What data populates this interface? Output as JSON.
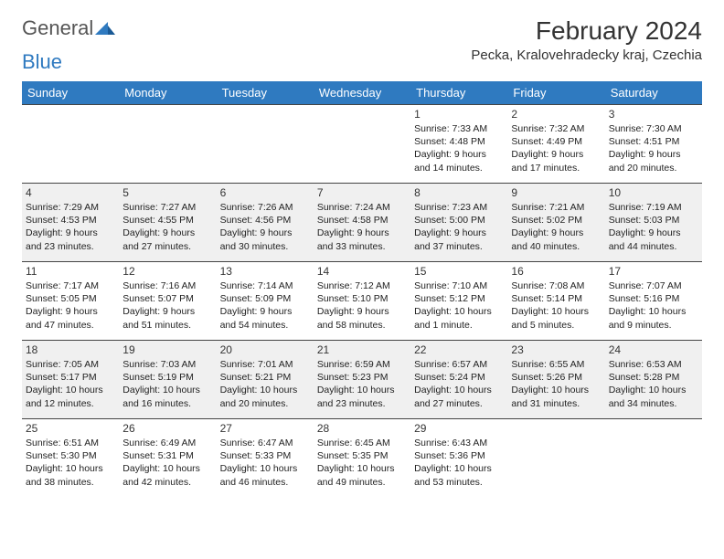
{
  "logo": {
    "text1": "General",
    "text2": "Blue"
  },
  "title": "February 2024",
  "location": "Pecka, Kralovehradecky kraj, Czechia",
  "colors": {
    "header_bg": "#2f7ac0",
    "header_fg": "#ffffff",
    "row_odd_bg": "#ffffff",
    "row_even_bg": "#f0f0f0",
    "border": "#444444"
  },
  "day_headers": [
    "Sunday",
    "Monday",
    "Tuesday",
    "Wednesday",
    "Thursday",
    "Friday",
    "Saturday"
  ],
  "weeks": [
    {
      "parity": "odd",
      "days": [
        {
          "n": "",
          "lines": []
        },
        {
          "n": "",
          "lines": []
        },
        {
          "n": "",
          "lines": []
        },
        {
          "n": "",
          "lines": []
        },
        {
          "n": "1",
          "lines": [
            "Sunrise: 7:33 AM",
            "Sunset: 4:48 PM",
            "Daylight: 9 hours",
            "and 14 minutes."
          ]
        },
        {
          "n": "2",
          "lines": [
            "Sunrise: 7:32 AM",
            "Sunset: 4:49 PM",
            "Daylight: 9 hours",
            "and 17 minutes."
          ]
        },
        {
          "n": "3",
          "lines": [
            "Sunrise: 7:30 AM",
            "Sunset: 4:51 PM",
            "Daylight: 9 hours",
            "and 20 minutes."
          ]
        }
      ]
    },
    {
      "parity": "even",
      "days": [
        {
          "n": "4",
          "lines": [
            "Sunrise: 7:29 AM",
            "Sunset: 4:53 PM",
            "Daylight: 9 hours",
            "and 23 minutes."
          ]
        },
        {
          "n": "5",
          "lines": [
            "Sunrise: 7:27 AM",
            "Sunset: 4:55 PM",
            "Daylight: 9 hours",
            "and 27 minutes."
          ]
        },
        {
          "n": "6",
          "lines": [
            "Sunrise: 7:26 AM",
            "Sunset: 4:56 PM",
            "Daylight: 9 hours",
            "and 30 minutes."
          ]
        },
        {
          "n": "7",
          "lines": [
            "Sunrise: 7:24 AM",
            "Sunset: 4:58 PM",
            "Daylight: 9 hours",
            "and 33 minutes."
          ]
        },
        {
          "n": "8",
          "lines": [
            "Sunrise: 7:23 AM",
            "Sunset: 5:00 PM",
            "Daylight: 9 hours",
            "and 37 minutes."
          ]
        },
        {
          "n": "9",
          "lines": [
            "Sunrise: 7:21 AM",
            "Sunset: 5:02 PM",
            "Daylight: 9 hours",
            "and 40 minutes."
          ]
        },
        {
          "n": "10",
          "lines": [
            "Sunrise: 7:19 AM",
            "Sunset: 5:03 PM",
            "Daylight: 9 hours",
            "and 44 minutes."
          ]
        }
      ]
    },
    {
      "parity": "odd",
      "days": [
        {
          "n": "11",
          "lines": [
            "Sunrise: 7:17 AM",
            "Sunset: 5:05 PM",
            "Daylight: 9 hours",
            "and 47 minutes."
          ]
        },
        {
          "n": "12",
          "lines": [
            "Sunrise: 7:16 AM",
            "Sunset: 5:07 PM",
            "Daylight: 9 hours",
            "and 51 minutes."
          ]
        },
        {
          "n": "13",
          "lines": [
            "Sunrise: 7:14 AM",
            "Sunset: 5:09 PM",
            "Daylight: 9 hours",
            "and 54 minutes."
          ]
        },
        {
          "n": "14",
          "lines": [
            "Sunrise: 7:12 AM",
            "Sunset: 5:10 PM",
            "Daylight: 9 hours",
            "and 58 minutes."
          ]
        },
        {
          "n": "15",
          "lines": [
            "Sunrise: 7:10 AM",
            "Sunset: 5:12 PM",
            "Daylight: 10 hours",
            "and 1 minute."
          ]
        },
        {
          "n": "16",
          "lines": [
            "Sunrise: 7:08 AM",
            "Sunset: 5:14 PM",
            "Daylight: 10 hours",
            "and 5 minutes."
          ]
        },
        {
          "n": "17",
          "lines": [
            "Sunrise: 7:07 AM",
            "Sunset: 5:16 PM",
            "Daylight: 10 hours",
            "and 9 minutes."
          ]
        }
      ]
    },
    {
      "parity": "even",
      "days": [
        {
          "n": "18",
          "lines": [
            "Sunrise: 7:05 AM",
            "Sunset: 5:17 PM",
            "Daylight: 10 hours",
            "and 12 minutes."
          ]
        },
        {
          "n": "19",
          "lines": [
            "Sunrise: 7:03 AM",
            "Sunset: 5:19 PM",
            "Daylight: 10 hours",
            "and 16 minutes."
          ]
        },
        {
          "n": "20",
          "lines": [
            "Sunrise: 7:01 AM",
            "Sunset: 5:21 PM",
            "Daylight: 10 hours",
            "and 20 minutes."
          ]
        },
        {
          "n": "21",
          "lines": [
            "Sunrise: 6:59 AM",
            "Sunset: 5:23 PM",
            "Daylight: 10 hours",
            "and 23 minutes."
          ]
        },
        {
          "n": "22",
          "lines": [
            "Sunrise: 6:57 AM",
            "Sunset: 5:24 PM",
            "Daylight: 10 hours",
            "and 27 minutes."
          ]
        },
        {
          "n": "23",
          "lines": [
            "Sunrise: 6:55 AM",
            "Sunset: 5:26 PM",
            "Daylight: 10 hours",
            "and 31 minutes."
          ]
        },
        {
          "n": "24",
          "lines": [
            "Sunrise: 6:53 AM",
            "Sunset: 5:28 PM",
            "Daylight: 10 hours",
            "and 34 minutes."
          ]
        }
      ]
    },
    {
      "parity": "odd",
      "days": [
        {
          "n": "25",
          "lines": [
            "Sunrise: 6:51 AM",
            "Sunset: 5:30 PM",
            "Daylight: 10 hours",
            "and 38 minutes."
          ]
        },
        {
          "n": "26",
          "lines": [
            "Sunrise: 6:49 AM",
            "Sunset: 5:31 PM",
            "Daylight: 10 hours",
            "and 42 minutes."
          ]
        },
        {
          "n": "27",
          "lines": [
            "Sunrise: 6:47 AM",
            "Sunset: 5:33 PM",
            "Daylight: 10 hours",
            "and 46 minutes."
          ]
        },
        {
          "n": "28",
          "lines": [
            "Sunrise: 6:45 AM",
            "Sunset: 5:35 PM",
            "Daylight: 10 hours",
            "and 49 minutes."
          ]
        },
        {
          "n": "29",
          "lines": [
            "Sunrise: 6:43 AM",
            "Sunset: 5:36 PM",
            "Daylight: 10 hours",
            "and 53 minutes."
          ]
        },
        {
          "n": "",
          "lines": []
        },
        {
          "n": "",
          "lines": []
        }
      ]
    }
  ]
}
